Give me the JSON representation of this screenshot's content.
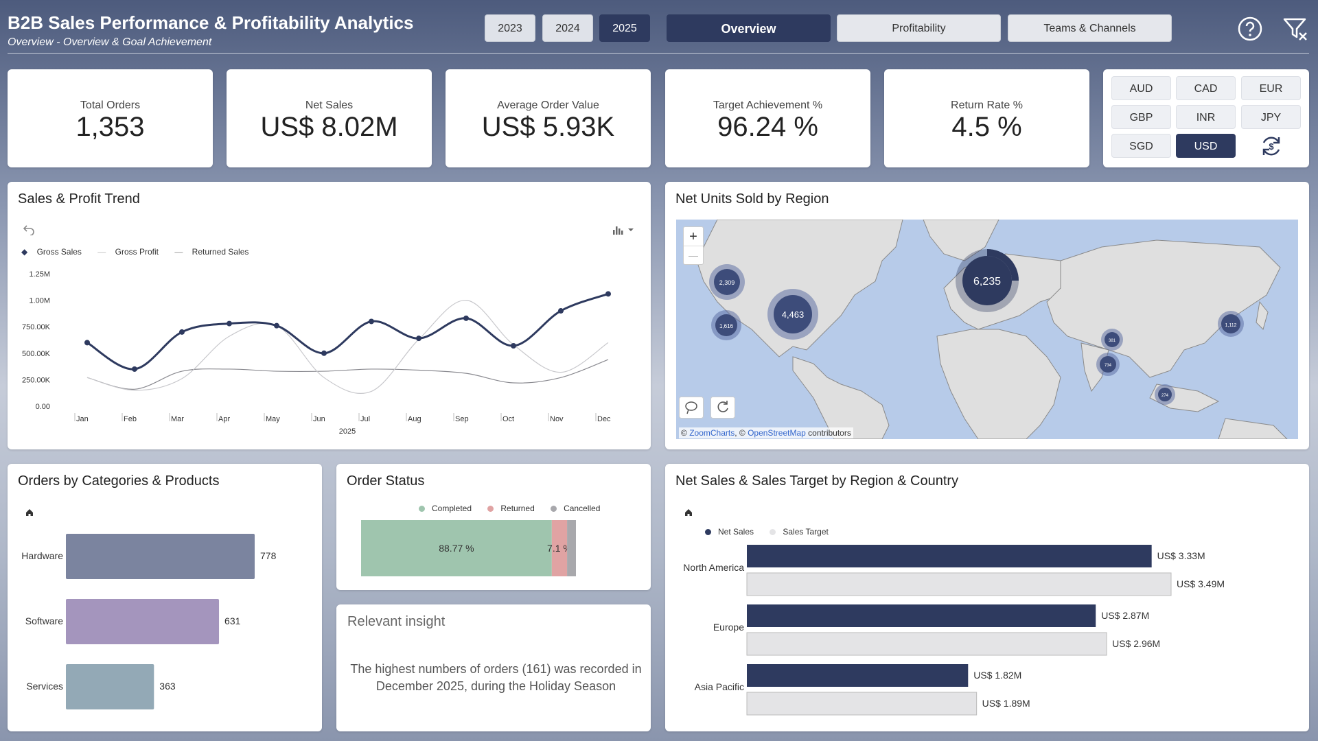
{
  "header": {
    "title": "B2B Sales Performance & Profitability Analytics",
    "subtitle": "Overview - Overview & Goal Achievement",
    "years": [
      "2023",
      "2024",
      "2025"
    ],
    "active_year": "2025",
    "pages": [
      "Overview",
      "Profitability",
      "Teams & Channels"
    ],
    "active_page": "Overview",
    "icons": [
      "help-icon",
      "clear-filter-icon"
    ]
  },
  "kpis": [
    {
      "label": "Total Orders",
      "value": "1,353"
    },
    {
      "label": "Net Sales",
      "value": "US$ 8.02M"
    },
    {
      "label": "Average Order Value",
      "value": "US$ 5.93K"
    },
    {
      "label": "Target Achievement %",
      "value": "96.24 %"
    },
    {
      "label": "Return Rate %",
      "value": "4.5 %"
    }
  ],
  "currencies": {
    "options": [
      "AUD",
      "CAD",
      "EUR",
      "GBP",
      "INR",
      "JPY",
      "SGD",
      "USD"
    ],
    "active": "USD",
    "reset_icon": "currency-refresh-icon"
  },
  "trend": {
    "title": "Sales & Profit Trend",
    "legend": [
      "Gross Sales",
      "Gross Profit",
      "Returned Sales"
    ],
    "y_ticks": [
      "1.25M",
      "1.00M",
      "750.00K",
      "500.00K",
      "250.00K",
      "0.00"
    ],
    "year_label": "2025"
  },
  "map": {
    "title": "Net Units Sold by Region",
    "zoom_in": "+",
    "zoom_out": "—",
    "attribution_prefix": "©",
    "attribution_zoom": "ZoomCharts",
    "attribution_mid": ", ©",
    "attribution_osm": "OpenStreetMap",
    "attribution_suffix": "contributors",
    "bubbles": [
      {
        "label": "6,235"
      },
      {
        "label": "4,463"
      },
      {
        "label": "2,309"
      },
      {
        "label": "1,616"
      },
      {
        "label": "1,112"
      },
      {
        "label": "381"
      },
      {
        "label": "734"
      },
      {
        "label": "274"
      }
    ]
  },
  "categories": {
    "title": "Orders by Categories & Products",
    "home_icon": "home-icon"
  },
  "order_status": {
    "title": "Order Status",
    "legend": [
      "Completed",
      "Returned",
      "Cancelled"
    ],
    "completed_label": "88.77 %",
    "returned_label": "7.1 %"
  },
  "insight": {
    "title": "Relevant insight",
    "text": "The highest numbers of orders (161) was recorded in December 2025, during the Holiday Season"
  },
  "region": {
    "title": "Net Sales & Sales Target by Region & Country",
    "legend": [
      "Net Sales",
      "Sales Target"
    ],
    "home_icon": "home-icon"
  },
  "colors": {
    "navy": "#2e3a5f",
    "completed": "#9fc5ae",
    "returned": "#e0a3a3",
    "cancelled": "#a8a8ac",
    "hardware": "#7b849f",
    "software": "#a495bd",
    "services": "#93a9b6",
    "map_water": "#b7cbe9",
    "target": "#e4e4e6"
  },
  "chart_data": [
    {
      "type": "line",
      "title": "Sales & Profit Trend",
      "x": [
        "Jan",
        "Feb",
        "Mar",
        "Apr",
        "May",
        "Jun",
        "Jul",
        "Aug",
        "Sep",
        "Oct",
        "Nov",
        "Dec"
      ],
      "xlabel": "2025",
      "ylim": [
        0,
        1250000
      ],
      "legend_position": "top-left",
      "series": [
        {
          "name": "Gross Sales",
          "values": [
            600000,
            350000,
            700000,
            780000,
            760000,
            500000,
            800000,
            640000,
            830000,
            570000,
            900000,
            1060000
          ]
        },
        {
          "name": "Gross Profit",
          "values": [
            270000,
            150000,
            260000,
            660000,
            760000,
            270000,
            140000,
            630000,
            1000000,
            580000,
            320000,
            600000
          ]
        },
        {
          "name": "Returned Sales",
          "values": [
            270000,
            160000,
            330000,
            350000,
            330000,
            330000,
            350000,
            340000,
            310000,
            220000,
            270000,
            440000
          ]
        }
      ]
    },
    {
      "type": "bar",
      "title": "Orders by Categories & Products",
      "categories": [
        "Hardware",
        "Software",
        "Services"
      ],
      "values": [
        778,
        631,
        363
      ]
    },
    {
      "type": "bar",
      "title": "Order Status",
      "categories": [
        "Completed",
        "Returned",
        "Cancelled"
      ],
      "values": [
        88.77,
        7.1,
        4.13
      ],
      "legend_position": "top"
    },
    {
      "type": "bar",
      "title": "Net Sales & Sales Target by Region & Country",
      "categories": [
        "North America",
        "Europe",
        "Asia Pacific"
      ],
      "series": [
        {
          "name": "Net Sales",
          "values": [
            3.33,
            2.87,
            1.82
          ],
          "labels": [
            "US$ 3.33M",
            "US$ 2.87M",
            "US$ 1.82M"
          ]
        },
        {
          "name": "Sales Target",
          "values": [
            3.49,
            2.96,
            1.89
          ],
          "labels": [
            "US$ 3.49M",
            "US$ 2.96M",
            "US$ 1.89M"
          ]
        }
      ],
      "legend_position": "top-left"
    }
  ]
}
